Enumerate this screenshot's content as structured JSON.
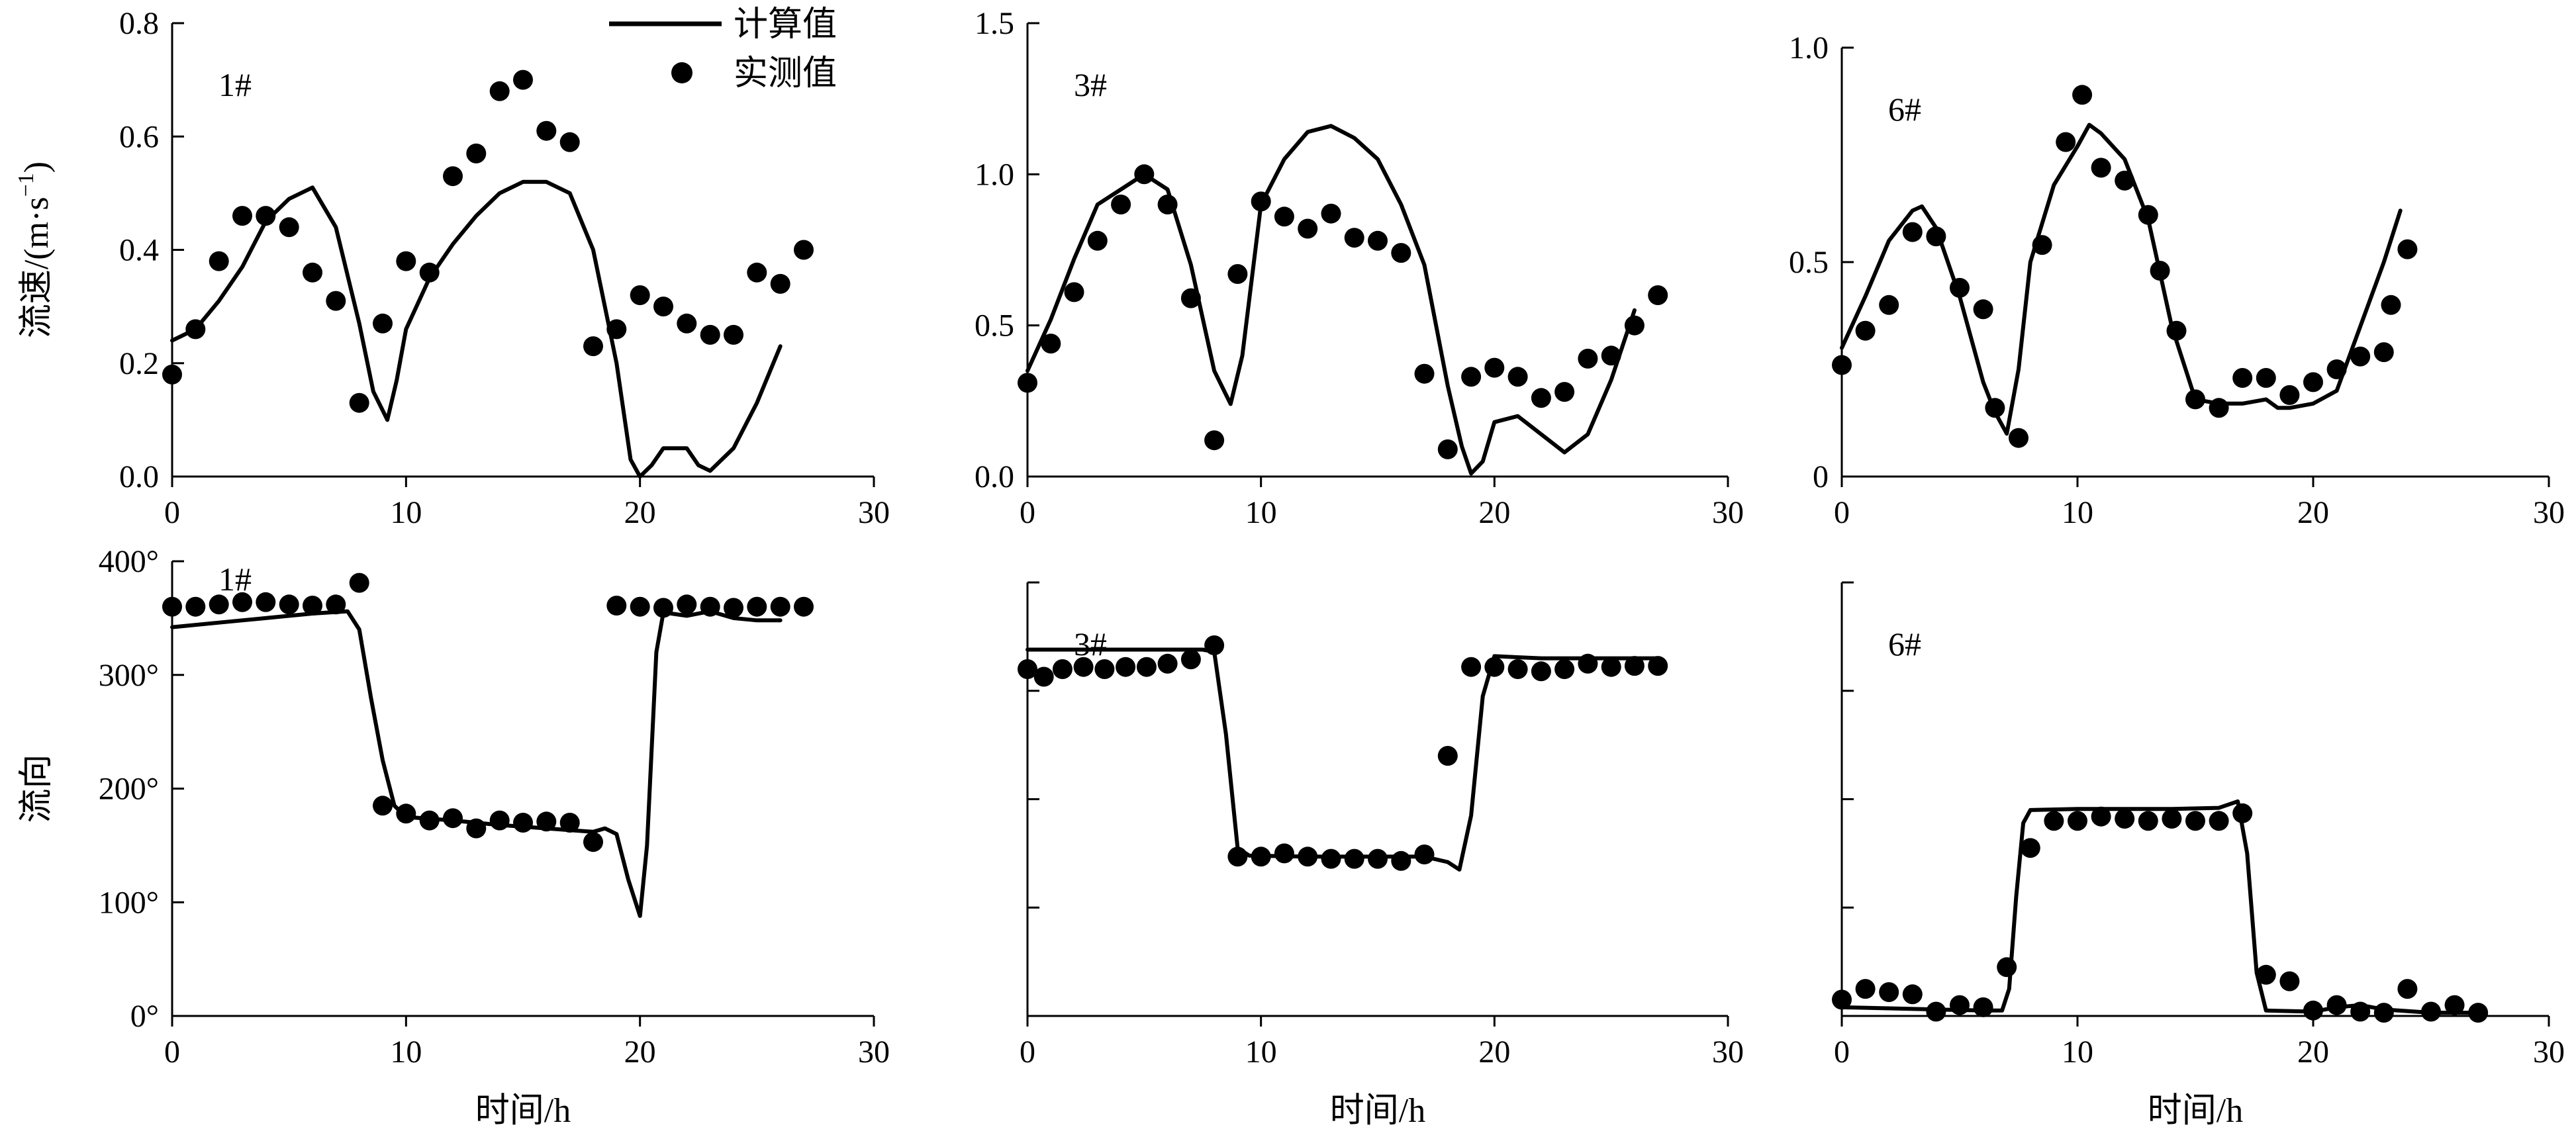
{
  "legend": {
    "computed_label": "计算值",
    "measured_label": "实测值"
  },
  "chart_data": [
    {
      "type": "line",
      "panel": "1#",
      "ylabel": "流速/(m·s",
      "ylabel_sup": "−1",
      "ylabel_close": ")",
      "xlim": [
        0,
        30
      ],
      "xticks": [
        0,
        10,
        20,
        30
      ],
      "xtick_labels": [
        "0",
        "10",
        "20",
        "30"
      ],
      "ylim": [
        0,
        0.8
      ],
      "yticks": [
        0,
        0.2,
        0.4,
        0.6,
        0.8
      ],
      "ytick_labels": [
        "0.0",
        "0.2",
        "0.4",
        "0.6",
        "0.8"
      ],
      "computed": [
        [
          0,
          0.24
        ],
        [
          1,
          0.26
        ],
        [
          2,
          0.31
        ],
        [
          3,
          0.37
        ],
        [
          4,
          0.45
        ],
        [
          5,
          0.49
        ],
        [
          6,
          0.51
        ],
        [
          7,
          0.44
        ],
        [
          8,
          0.27
        ],
        [
          8.6,
          0.15
        ],
        [
          9.2,
          0.1
        ],
        [
          9.6,
          0.17
        ],
        [
          10,
          0.26
        ],
        [
          11,
          0.35
        ],
        [
          12,
          0.41
        ],
        [
          13,
          0.46
        ],
        [
          14,
          0.5
        ],
        [
          15,
          0.52
        ],
        [
          16,
          0.52
        ],
        [
          17,
          0.5
        ],
        [
          18,
          0.4
        ],
        [
          19,
          0.2
        ],
        [
          19.6,
          0.03
        ],
        [
          20,
          0.0
        ],
        [
          20.5,
          0.02
        ],
        [
          21,
          0.05
        ],
        [
          22,
          0.05
        ],
        [
          22.5,
          0.02
        ],
        [
          23,
          0.01
        ],
        [
          24,
          0.05
        ],
        [
          25,
          0.13
        ],
        [
          26,
          0.23
        ]
      ],
      "measured": [
        [
          0,
          0.18
        ],
        [
          1,
          0.26
        ],
        [
          2,
          0.38
        ],
        [
          3,
          0.46
        ],
        [
          4,
          0.46
        ],
        [
          5,
          0.44
        ],
        [
          6,
          0.36
        ],
        [
          7,
          0.31
        ],
        [
          8,
          0.13
        ],
        [
          9,
          0.27
        ],
        [
          10,
          0.38
        ],
        [
          11,
          0.36
        ],
        [
          12,
          0.53
        ],
        [
          13,
          0.57
        ],
        [
          14,
          0.68
        ],
        [
          15,
          0.7
        ],
        [
          16,
          0.61
        ],
        [
          17,
          0.59
        ],
        [
          18,
          0.23
        ],
        [
          19,
          0.26
        ],
        [
          20,
          0.32
        ],
        [
          21,
          0.3
        ],
        [
          22,
          0.27
        ],
        [
          23,
          0.25
        ],
        [
          24,
          0.25
        ],
        [
          25,
          0.36
        ],
        [
          26,
          0.34
        ],
        [
          27,
          0.4
        ]
      ]
    },
    {
      "type": "line",
      "panel": "3#",
      "xlim": [
        0,
        30
      ],
      "xticks": [
        0,
        10,
        20,
        30
      ],
      "xtick_labels": [
        "0",
        "10",
        "20",
        "30"
      ],
      "ylim": [
        0,
        1.5
      ],
      "yticks": [
        0,
        0.5,
        1.0,
        1.5
      ],
      "ytick_labels": [
        "0.0",
        "0.5",
        "1.0",
        "1.5"
      ],
      "computed": [
        [
          0,
          0.35
        ],
        [
          1,
          0.52
        ],
        [
          2,
          0.72
        ],
        [
          3,
          0.9
        ],
        [
          4,
          0.95
        ],
        [
          5,
          1.0
        ],
        [
          6,
          0.95
        ],
        [
          7,
          0.7
        ],
        [
          8,
          0.35
        ],
        [
          8.7,
          0.24
        ],
        [
          9.2,
          0.4
        ],
        [
          10,
          0.9
        ],
        [
          11,
          1.05
        ],
        [
          12,
          1.14
        ],
        [
          13,
          1.16
        ],
        [
          14,
          1.12
        ],
        [
          15,
          1.05
        ],
        [
          16,
          0.9
        ],
        [
          17,
          0.7
        ],
        [
          18,
          0.3
        ],
        [
          18.6,
          0.1
        ],
        [
          19,
          0.01
        ],
        [
          19.5,
          0.05
        ],
        [
          20,
          0.18
        ],
        [
          21,
          0.2
        ],
        [
          22,
          0.14
        ],
        [
          23,
          0.08
        ],
        [
          24,
          0.14
        ],
        [
          25,
          0.32
        ],
        [
          26,
          0.55
        ]
      ],
      "measured": [
        [
          0,
          0.31
        ],
        [
          1,
          0.44
        ],
        [
          2,
          0.61
        ],
        [
          3,
          0.78
        ],
        [
          4,
          0.9
        ],
        [
          5,
          1.0
        ],
        [
          6,
          0.9
        ],
        [
          7,
          0.59
        ],
        [
          8,
          0.12
        ],
        [
          9,
          0.67
        ],
        [
          10,
          0.91
        ],
        [
          11,
          0.86
        ],
        [
          12,
          0.82
        ],
        [
          13,
          0.87
        ],
        [
          14,
          0.79
        ],
        [
          15,
          0.78
        ],
        [
          16,
          0.74
        ],
        [
          17,
          0.34
        ],
        [
          18,
          0.09
        ],
        [
          19,
          0.33
        ],
        [
          20,
          0.36
        ],
        [
          21,
          0.33
        ],
        [
          22,
          0.26
        ],
        [
          23,
          0.28
        ],
        [
          24,
          0.39
        ],
        [
          25,
          0.4
        ],
        [
          26,
          0.5
        ],
        [
          27,
          0.6
        ]
      ]
    },
    {
      "type": "line",
      "panel": "6#",
      "xlim": [
        0,
        30
      ],
      "xticks": [
        0,
        10,
        20,
        30
      ],
      "xtick_labels": [
        "0",
        "10",
        "20",
        "30"
      ],
      "ylim": [
        0,
        1.0
      ],
      "yticks": [
        0,
        0.5,
        1.0
      ],
      "ytick_labels": [
        "0",
        "0.5",
        "1.0"
      ],
      "computed": [
        [
          0,
          0.3
        ],
        [
          1,
          0.42
        ],
        [
          2,
          0.55
        ],
        [
          3,
          0.62
        ],
        [
          3.4,
          0.63
        ],
        [
          4,
          0.58
        ],
        [
          5,
          0.42
        ],
        [
          6,
          0.22
        ],
        [
          6.5,
          0.15
        ],
        [
          7,
          0.1
        ],
        [
          7.5,
          0.25
        ],
        [
          8,
          0.5
        ],
        [
          9,
          0.68
        ],
        [
          10,
          0.77
        ],
        [
          10.5,
          0.82
        ],
        [
          11,
          0.8
        ],
        [
          12,
          0.74
        ],
        [
          13,
          0.6
        ],
        [
          14,
          0.35
        ],
        [
          15,
          0.18
        ],
        [
          16,
          0.17
        ],
        [
          17,
          0.17
        ],
        [
          18,
          0.18
        ],
        [
          18.5,
          0.16
        ],
        [
          19,
          0.16
        ],
        [
          20,
          0.17
        ],
        [
          21,
          0.2
        ],
        [
          22,
          0.35
        ],
        [
          23,
          0.5
        ],
        [
          23.7,
          0.62
        ]
      ],
      "measured": [
        [
          0,
          0.26
        ],
        [
          1,
          0.34
        ],
        [
          2,
          0.4
        ],
        [
          3,
          0.57
        ],
        [
          4,
          0.56
        ],
        [
          5,
          0.44
        ],
        [
          6,
          0.39
        ],
        [
          6.5,
          0.16
        ],
        [
          7.5,
          0.09
        ],
        [
          8.5,
          0.54
        ],
        [
          9.5,
          0.78
        ],
        [
          10.2,
          0.89
        ],
        [
          11,
          0.72
        ],
        [
          12,
          0.69
        ],
        [
          13,
          0.61
        ],
        [
          13.5,
          0.48
        ],
        [
          14.2,
          0.34
        ],
        [
          15,
          0.18
        ],
        [
          16,
          0.16
        ],
        [
          17,
          0.23
        ],
        [
          18,
          0.23
        ],
        [
          19,
          0.19
        ],
        [
          20,
          0.22
        ],
        [
          21,
          0.25
        ],
        [
          22,
          0.28
        ],
        [
          23,
          0.29
        ],
        [
          23.3,
          0.4
        ],
        [
          24,
          0.53
        ]
      ]
    },
    {
      "type": "line",
      "panel": "1#",
      "ylabel": "流向",
      "xlabel": "时间/h",
      "xlim": [
        0,
        30
      ],
      "xticks": [
        0,
        10,
        20,
        30
      ],
      "xtick_labels": [
        "0",
        "10",
        "20",
        "30"
      ],
      "ylim": [
        0,
        400
      ],
      "yticks": [
        0,
        100,
        200,
        300,
        400
      ],
      "ytick_labels": [
        "0°",
        "100°",
        "200°",
        "300°",
        "400°"
      ],
      "computed": [
        [
          0,
          342
        ],
        [
          2,
          346
        ],
        [
          4,
          350
        ],
        [
          6,
          354
        ],
        [
          7.5,
          356
        ],
        [
          8,
          340
        ],
        [
          8.5,
          280
        ],
        [
          9,
          225
        ],
        [
          9.5,
          185
        ],
        [
          10,
          175
        ],
        [
          12,
          172
        ],
        [
          14,
          168
        ],
        [
          16,
          165
        ],
        [
          18,
          162
        ],
        [
          18.5,
          165
        ],
        [
          19,
          160
        ],
        [
          19.5,
          120
        ],
        [
          20,
          88
        ],
        [
          20.3,
          150
        ],
        [
          20.7,
          320
        ],
        [
          21,
          355
        ],
        [
          22,
          352
        ],
        [
          23,
          356
        ],
        [
          24,
          350
        ],
        [
          25,
          348
        ],
        [
          26,
          348
        ]
      ],
      "measured": [
        [
          0,
          360
        ],
        [
          1,
          360
        ],
        [
          2,
          362
        ],
        [
          3,
          364
        ],
        [
          4,
          364
        ],
        [
          5,
          362
        ],
        [
          6,
          361
        ],
        [
          7,
          362
        ],
        [
          8,
          381
        ],
        [
          9,
          185
        ],
        [
          10,
          178
        ],
        [
          11,
          172
        ],
        [
          12,
          174
        ],
        [
          13,
          165
        ],
        [
          14,
          172
        ],
        [
          15,
          170
        ],
        [
          16,
          171
        ],
        [
          17,
          170
        ],
        [
          18,
          153
        ],
        [
          19,
          361
        ],
        [
          20,
          360
        ],
        [
          21,
          359
        ],
        [
          22,
          362
        ],
        [
          23,
          360
        ],
        [
          24,
          359
        ],
        [
          25,
          360
        ],
        [
          26,
          360
        ],
        [
          27,
          360
        ]
      ]
    },
    {
      "type": "line",
      "panel": "3#",
      "xlabel": "时间/h",
      "xlim": [
        0,
        30
      ],
      "xticks": [
        0,
        10,
        20,
        30
      ],
      "xtick_labels": [
        "0",
        "10",
        "20",
        "30"
      ],
      "ylim": [
        0,
        400
      ],
      "yticks": [
        0,
        100,
        200,
        300,
        400
      ],
      "ytick_labels": [],
      "computed": [
        [
          0,
          338
        ],
        [
          2,
          338
        ],
        [
          4,
          338
        ],
        [
          6,
          338
        ],
        [
          7.5,
          338
        ],
        [
          8,
          336
        ],
        [
          8.5,
          260
        ],
        [
          9,
          155
        ],
        [
          9.5,
          148
        ],
        [
          12,
          147
        ],
        [
          14,
          147
        ],
        [
          16,
          147
        ],
        [
          17,
          147
        ],
        [
          18,
          142
        ],
        [
          18.5,
          135
        ],
        [
          19,
          185
        ],
        [
          19.5,
          295
        ],
        [
          20,
          332
        ],
        [
          22,
          330
        ],
        [
          24,
          330
        ],
        [
          26,
          330
        ],
        [
          27,
          330
        ]
      ],
      "measured": [
        [
          0,
          320
        ],
        [
          0.7,
          313
        ],
        [
          1.5,
          320
        ],
        [
          2.4,
          322
        ],
        [
          3.3,
          320
        ],
        [
          4.2,
          322
        ],
        [
          5.1,
          322
        ],
        [
          6,
          325
        ],
        [
          7,
          329
        ],
        [
          8,
          342
        ],
        [
          9,
          147
        ],
        [
          10,
          147
        ],
        [
          11,
          150
        ],
        [
          12,
          147
        ],
        [
          13,
          145
        ],
        [
          14,
          145
        ],
        [
          15,
          145
        ],
        [
          16,
          143
        ],
        [
          17,
          149
        ],
        [
          18,
          240
        ],
        [
          19,
          322
        ],
        [
          20,
          322
        ],
        [
          21,
          320
        ],
        [
          22,
          318
        ],
        [
          23,
          320
        ],
        [
          24,
          325
        ],
        [
          25,
          322
        ],
        [
          26,
          323
        ],
        [
          27,
          323
        ]
      ]
    },
    {
      "type": "line",
      "panel": "6#",
      "xlabel": "时间/h",
      "xlim": [
        0,
        30
      ],
      "xticks": [
        0,
        10,
        20,
        30
      ],
      "xtick_labels": [
        "0",
        "10",
        "20",
        "30"
      ],
      "ylim": [
        0,
        400
      ],
      "yticks": [
        0,
        100,
        200,
        300,
        400
      ],
      "ytick_labels": [],
      "computed": [
        [
          0,
          8
        ],
        [
          2,
          7
        ],
        [
          4,
          6
        ],
        [
          6,
          5
        ],
        [
          6.8,
          5
        ],
        [
          7.1,
          25
        ],
        [
          7.4,
          110
        ],
        [
          7.7,
          178
        ],
        [
          8,
          190
        ],
        [
          10,
          191
        ],
        [
          12,
          191
        ],
        [
          14,
          191
        ],
        [
          16,
          192
        ],
        [
          16.8,
          198
        ],
        [
          17.2,
          150
        ],
        [
          17.6,
          40
        ],
        [
          18,
          5
        ],
        [
          20,
          4
        ],
        [
          21,
          8
        ],
        [
          22,
          10
        ],
        [
          23,
          6
        ],
        [
          25,
          3
        ],
        [
          27,
          3
        ]
      ],
      "measured": [
        [
          0,
          15
        ],
        [
          1,
          25
        ],
        [
          2,
          22
        ],
        [
          3,
          20
        ],
        [
          4,
          4
        ],
        [
          5,
          10
        ],
        [
          6,
          8
        ],
        [
          7,
          45
        ],
        [
          8,
          155
        ],
        [
          9,
          180
        ],
        [
          10,
          180
        ],
        [
          11,
          184
        ],
        [
          12,
          182
        ],
        [
          13,
          180
        ],
        [
          14,
          182
        ],
        [
          15,
          180
        ],
        [
          16,
          180
        ],
        [
          17,
          187
        ],
        [
          18,
          38
        ],
        [
          19,
          32
        ],
        [
          20,
          5
        ],
        [
          21,
          10
        ],
        [
          22,
          4
        ],
        [
          23,
          3
        ],
        [
          24,
          25
        ],
        [
          25,
          4
        ],
        [
          26,
          10
        ],
        [
          27,
          3
        ]
      ]
    }
  ]
}
